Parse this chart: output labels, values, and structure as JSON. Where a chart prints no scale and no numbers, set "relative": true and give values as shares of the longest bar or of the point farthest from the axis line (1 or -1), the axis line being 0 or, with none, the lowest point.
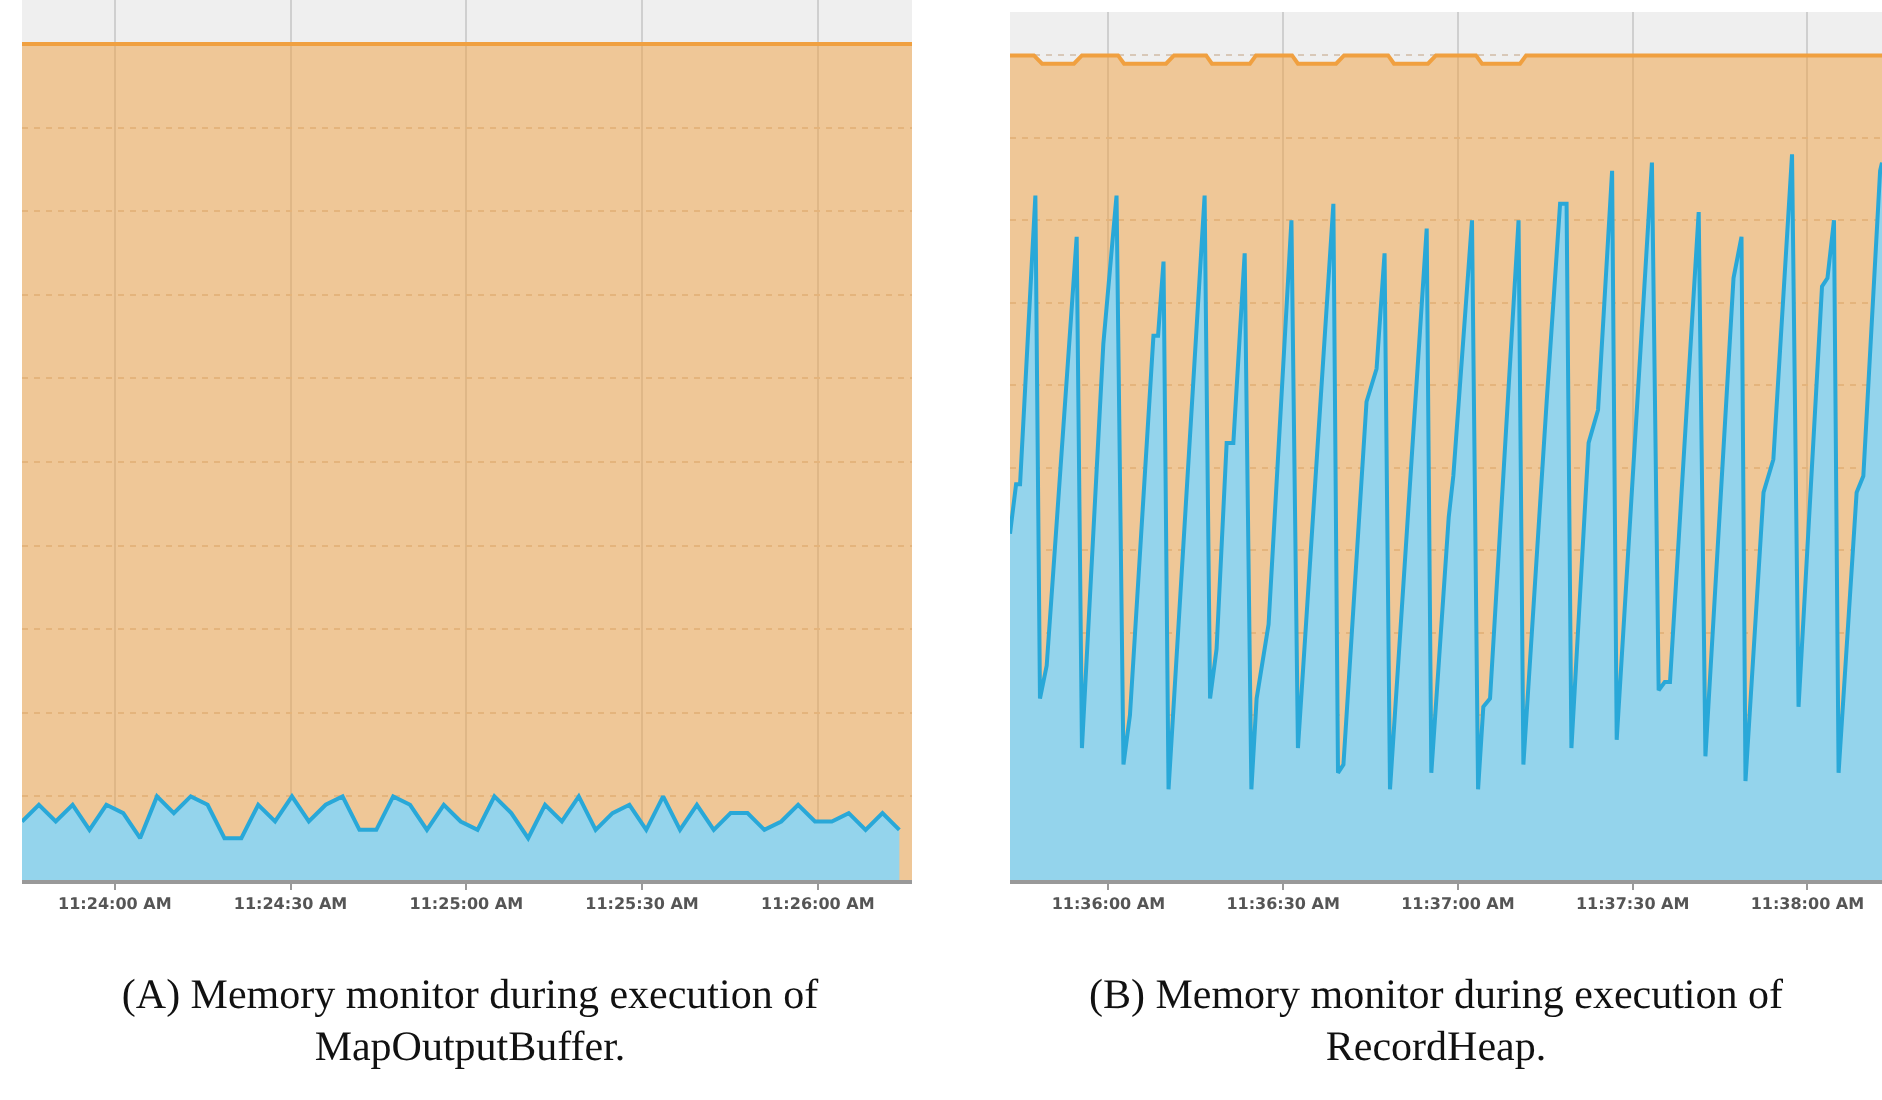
{
  "chart_data": [
    {
      "type": "area",
      "relative": true,
      "grid": true,
      "legend": false,
      "xlim": [
        11.3956,
        11.4378
      ],
      "xticks": [
        {
          "value": 11.4,
          "label": "11:24:00 AM"
        },
        {
          "value": 11.408333,
          "label": "11:24:30 AM"
        },
        {
          "value": 11.416667,
          "label": "11:25:00 AM"
        },
        {
          "value": 11.425,
          "label": "11:25:30 AM"
        },
        {
          "value": 11.433333,
          "label": "11:26:00 AM"
        }
      ],
      "series": [
        {
          "color": "#f0a040",
          "x": [
            11.3956,
            11.4378
          ],
          "values": [
            1,
            1
          ]
        },
        {
          "color": "#29a8d8",
          "x": [
            11.3956,
            11.3964,
            11.3972,
            11.398,
            11.3988,
            11.3996,
            11.4004,
            11.4012,
            11.402,
            11.4028,
            11.4036,
            11.4044,
            11.4052,
            11.406,
            11.4068,
            11.4076,
            11.4084,
            11.4092,
            11.41,
            11.4108,
            11.4116,
            11.4124,
            11.4132,
            11.414,
            11.4148,
            11.4156,
            11.4164,
            11.4172,
            11.418,
            11.4188,
            11.4196,
            11.4204,
            11.4212,
            11.422,
            11.4228,
            11.4236,
            11.4244,
            11.4252,
            11.426,
            11.4268,
            11.4276,
            11.4284,
            11.4292,
            11.43,
            11.4308,
            11.4316,
            11.4324,
            11.4332,
            11.434,
            11.4348,
            11.4356,
            11.4364,
            11.4372
          ],
          "values": [
            0.07,
            0.09,
            0.07,
            0.09,
            0.06,
            0.09,
            0.08,
            0.05,
            0.1,
            0.08,
            0.1,
            0.09,
            0.05,
            0.05,
            0.09,
            0.07,
            0.1,
            0.07,
            0.09,
            0.1,
            0.06,
            0.06,
            0.1,
            0.09,
            0.06,
            0.09,
            0.07,
            0.06,
            0.1,
            0.08,
            0.05,
            0.09,
            0.07,
            0.1,
            0.06,
            0.08,
            0.09,
            0.06,
            0.1,
            0.06,
            0.09,
            0.06,
            0.08,
            0.08,
            0.06,
            0.07,
            0.09,
            0.07,
            0.07,
            0.08,
            0.06,
            0.08,
            0.06
          ]
        }
      ],
      "annotations": [
        "(A) Memory monitor during execution of MapOutputBuffer."
      ]
    },
    {
      "type": "area",
      "relative": true,
      "grid": true,
      "legend": false,
      "xlim": [
        11.59531,
        11.63689
      ],
      "xticks": [
        {
          "value": 11.6,
          "label": "11:36:00 AM"
        },
        {
          "value": 11.608333,
          "label": "11:36:30 AM"
        },
        {
          "value": 11.616667,
          "label": "11:37:00 AM"
        },
        {
          "value": 11.625,
          "label": "11:37:30 AM"
        },
        {
          "value": 11.633333,
          "label": "11:38:00 AM"
        }
      ],
      "series": [
        {
          "color": "#f0a040",
          "x": [
            11.59531,
            11.59645,
            11.59684,
            11.59836,
            11.59874,
            11.60046,
            11.60075,
            11.60275,
            11.60313,
            11.60466,
            11.60494,
            11.60675,
            11.60704,
            11.60876,
            11.60904,
            11.61086,
            11.61124,
            11.61334,
            11.61362,
            11.61524,
            11.61562,
            11.61753,
            11.61782,
            11.61963,
            11.61992,
            11.63689
          ],
          "values": [
            1,
            1,
            0.99,
            0.99,
            1,
            1,
            0.99,
            0.99,
            1,
            1,
            0.99,
            0.99,
            1,
            1,
            0.99,
            0.99,
            1,
            1,
            0.99,
            0.99,
            1,
            1,
            0.99,
            0.99,
            1,
            1
          ]
        },
        {
          "color": "#29a8d8",
          "x": [
            11.59531,
            11.5956,
            11.59579,
            11.59652,
            11.59674,
            11.59706,
            11.59849,
            11.59874,
            11.59976,
            11.60039,
            11.60072,
            11.60103,
            11.60215,
            11.60237,
            11.60263,
            11.60287,
            11.60459,
            11.60485,
            11.60516,
            11.60564,
            11.60596,
            11.6065,
            11.60682,
            11.60707,
            11.60764,
            11.60873,
            11.60904,
            11.61073,
            11.61095,
            11.61121,
            11.61231,
            11.61279,
            11.61317,
            11.61343,
            11.61518,
            11.6154,
            11.61623,
            11.61645,
            11.61734,
            11.61763,
            11.61788,
            11.6182,
            11.61956,
            11.61979,
            11.6209,
            11.62154,
            11.62185,
            11.62208,
            11.6229,
            11.62335,
            11.62402,
            11.62424,
            11.62592,
            11.62624,
            11.62653,
            11.62678,
            11.62815,
            11.62847,
            11.62981,
            11.63019,
            11.63038,
            11.63124,
            11.63171,
            11.6326,
            11.63291,
            11.63403,
            11.63429,
            11.6346,
            11.63482,
            11.63568,
            11.636,
            11.6368,
            11.63689
          ],
          "values": [
            0.42,
            0.48,
            0.48,
            0.83,
            0.22,
            0.26,
            0.78,
            0.16,
            0.65,
            0.83,
            0.14,
            0.2,
            0.66,
            0.66,
            0.75,
            0.11,
            0.83,
            0.22,
            0.28,
            0.53,
            0.53,
            0.76,
            0.11,
            0.22,
            0.31,
            0.8,
            0.16,
            0.82,
            0.13,
            0.14,
            0.58,
            0.62,
            0.76,
            0.11,
            0.79,
            0.13,
            0.44,
            0.49,
            0.8,
            0.11,
            0.21,
            0.22,
            0.8,
            0.14,
            0.58,
            0.82,
            0.82,
            0.16,
            0.53,
            0.57,
            0.86,
            0.17,
            0.87,
            0.23,
            0.24,
            0.24,
            0.81,
            0.15,
            0.73,
            0.78,
            0.12,
            0.47,
            0.51,
            0.88,
            0.21,
            0.72,
            0.73,
            0.8,
            0.13,
            0.47,
            0.49,
            0.86,
            0.87
          ]
        }
      ],
      "annotations": [
        "(B) Memory monitor during execution of RecordHeap."
      ]
    }
  ]
}
